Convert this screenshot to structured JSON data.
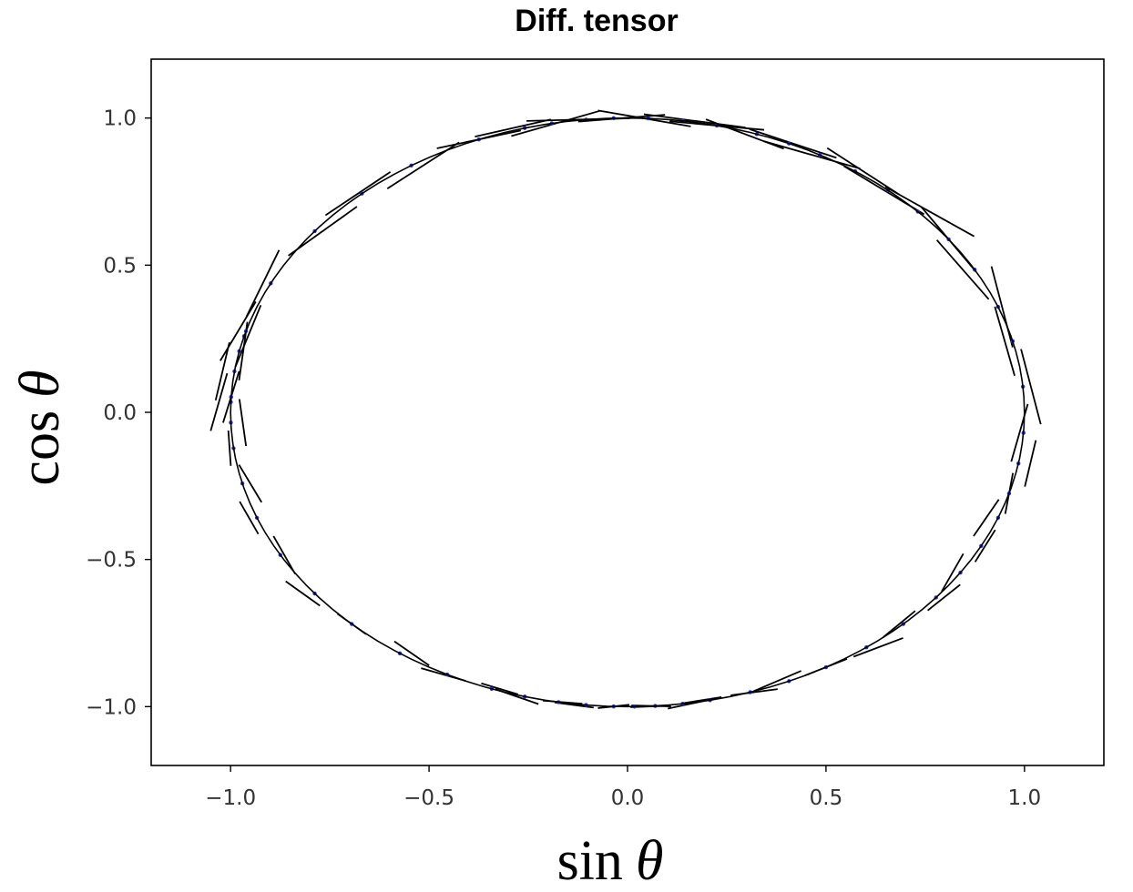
{
  "chart_data": {
    "type": "scatter",
    "title": "Diff. tensor",
    "xlabel": "sin",
    "ylabel": "cos",
    "xlabel_symbol": "θ",
    "ylabel_symbol": "θ",
    "xlim": [
      -1.2,
      1.2
    ],
    "ylim": [
      -1.2,
      1.2
    ],
    "x_ticks": [
      -1.0,
      -0.5,
      0.0,
      0.5,
      1.0
    ],
    "y_ticks": [
      -1.0,
      -0.5,
      0.0,
      0.5,
      1.0
    ],
    "x_tick_labels": [
      "−1.0",
      "−0.5",
      "0.0",
      "0.5",
      "1.0"
    ],
    "y_tick_labels": [
      "−1.0",
      "−0.5",
      "0.0",
      "0.5",
      "1.0"
    ],
    "grid": false,
    "colors": {
      "points": "#2b2bd9",
      "segments": "#000000",
      "frame": "#000000"
    },
    "series": [
      {
        "marker": "point",
        "angles_deg": [
          -88,
          -75,
          -64,
          -52,
          -42,
          -33,
          -22,
          -15,
          -11,
          -6,
          -2,
          3,
          8,
          13,
          19,
          24,
          29,
          35,
          41,
          47,
          54,
          61,
          69,
          76,
          85,
          94,
          100,
          106,
          111,
          117,
          123,
          129,
          136,
          143,
          150,
          156,
          162,
          168,
          172,
          176,
          179,
          182,
          186,
          190,
          195,
          200,
          207,
          215,
          224,
          232,
          241,
          249,
          256,
          263,
          268,
          273,
          278,
          282,
          286
        ],
        "segment_half_length": [
          0.1,
          0.11,
          0.12,
          0.12,
          0.11,
          0.12,
          0.11,
          0.1,
          0.12,
          0.13,
          0.11,
          0.12,
          0.13,
          0.12,
          0.11,
          0.12,
          0.13,
          0.12,
          0.13,
          0.14,
          0.13,
          0.12,
          0.14,
          0.12,
          0.13,
          0.1,
          0.08,
          0.07,
          0.07,
          0.06,
          0.07,
          0.06,
          0.06,
          0.07,
          0.06,
          0.07,
          0.06,
          0.05,
          0.06,
          0.05,
          0.04,
          0.04,
          0.05,
          0.05,
          0.06,
          0.05,
          0.06,
          0.06,
          0.05,
          0.06,
          0.07,
          0.06,
          0.07,
          0.06,
          0.08,
          0.09,
          0.1,
          0.1,
          0.11
        ]
      }
    ]
  }
}
